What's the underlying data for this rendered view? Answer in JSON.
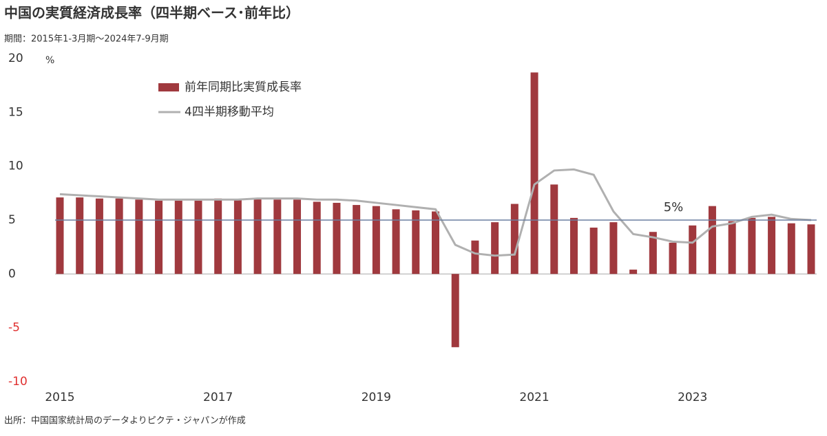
{
  "chart_data": {
    "type": "bar_line",
    "title": "中国の実質経済成長率（四半期ベース･前年比）",
    "subtitle": "期間：2015年1-3月期～2024年7-9月期",
    "source": "出所：中国国家統計局のデータよりピクテ・ジャパンが作成",
    "y_unit": "%",
    "categories": [
      "2015",
      null,
      null,
      null,
      null,
      null,
      null,
      null,
      "2017",
      null,
      null,
      null,
      null,
      null,
      null,
      null,
      "2019",
      null,
      null,
      null,
      null,
      null,
      null,
      null,
      "2021",
      null,
      null,
      null,
      null,
      null,
      null,
      null,
      "2023",
      null,
      null,
      null,
      null,
      null,
      null
    ],
    "series": [
      {
        "name": "前年同期比実質成長率",
        "color": "#a0393e",
        "kind": "bar",
        "values": [
          7.1,
          7.1,
          7.0,
          7.0,
          6.9,
          6.8,
          6.8,
          6.8,
          7.0,
          6.9,
          7.0,
          6.9,
          6.9,
          6.7,
          6.6,
          6.4,
          6.3,
          6.0,
          5.9,
          5.8,
          -6.8,
          3.1,
          4.8,
          6.5,
          18.7,
          8.3,
          5.2,
          4.3,
          4.8,
          0.4,
          3.9,
          2.9,
          4.5,
          6.3,
          4.9,
          5.2,
          5.3,
          4.7,
          4.6
        ]
      },
      {
        "name": "4四半期移動平均",
        "color": "#b0b0b0",
        "kind": "line",
        "values": [
          7.4,
          7.3,
          7.2,
          7.1,
          7.0,
          6.9,
          6.9,
          6.9,
          6.9,
          6.9,
          7.0,
          7.0,
          7.0,
          6.9,
          6.9,
          6.8,
          6.6,
          6.4,
          6.2,
          6.0,
          2.7,
          1.9,
          1.7,
          1.8,
          8.3,
          9.6,
          9.7,
          9.2,
          5.8,
          3.7,
          3.4,
          3.0,
          2.9,
          4.4,
          4.7,
          5.3,
          5.5,
          5.1,
          5.0
        ]
      }
    ],
    "reference_line": {
      "value": 5,
      "label": "5%",
      "color": "#6a7fa0"
    },
    "ylim": [
      -10,
      20
    ],
    "yticks": [
      -10,
      -5,
      0,
      5,
      10,
      15,
      20
    ],
    "negative_tick_color": "#e03030",
    "grid": false
  }
}
